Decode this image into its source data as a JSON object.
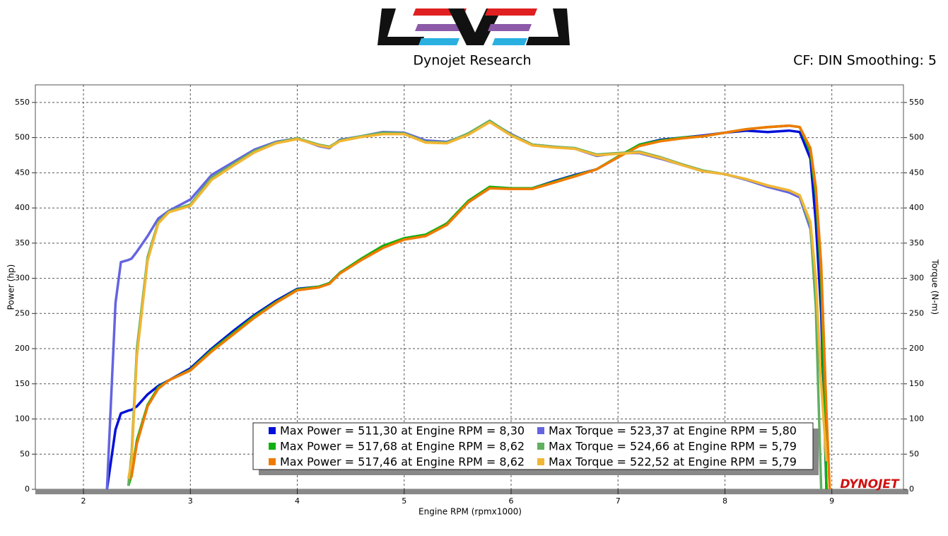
{
  "chart_data": {
    "type": "line",
    "title": "Dynojet Research",
    "subtitle": "CF: DIN Smoothing: 5",
    "brand": "DYNOJET",
    "x_label": "Engine RPM (rpmx1000)",
    "y_label": "Power (hp)",
    "y2_label": "Torque (N-m)",
    "grid": true,
    "xlim": [
      1.55,
      9.67
    ],
    "xticks": [
      2,
      3,
      4,
      5,
      6,
      7,
      8,
      9
    ],
    "ylim": [
      0,
      575
    ],
    "yticks": [
      0,
      50,
      100,
      150,
      200,
      250,
      300,
      350,
      400,
      450,
      500,
      550
    ],
    "y2lim": [
      0,
      575
    ],
    "y2ticks": [
      0,
      50,
      100,
      150,
      200,
      250,
      300,
      350,
      400,
      450,
      500,
      550
    ],
    "x": [
      2.22,
      2.3,
      2.35,
      2.42,
      2.45,
      2.5,
      2.6,
      2.7,
      2.8,
      3.0,
      3.2,
      3.4,
      3.6,
      3.8,
      4.0,
      4.2,
      4.3,
      4.4,
      4.6,
      4.8,
      5.0,
      5.2,
      5.4,
      5.6,
      5.8,
      6.0,
      6.2,
      6.4,
      6.6,
      6.8,
      7.0,
      7.2,
      7.4,
      7.6,
      7.8,
      8.0,
      8.2,
      8.4,
      8.6,
      8.7,
      8.8,
      8.85,
      8.9,
      8.95,
      8.98
    ],
    "series": [
      {
        "name": "Max Power = 511,30 at Engine RPM = 8,30",
        "color": "#0010d8",
        "values": [
          0,
          85,
          108,
          112,
          113,
          118,
          135,
          147,
          155,
          172,
          200,
          225,
          248,
          268,
          285,
          288,
          293,
          308,
          327,
          344,
          356,
          361,
          378,
          408,
          428,
          428,
          428,
          438,
          447,
          455,
          472,
          490,
          497,
          500,
          503,
          507,
          510,
          508,
          510,
          508,
          470,
          380,
          250,
          0,
          null
        ]
      },
      {
        "name": "Max Power = 517,68 at Engine RPM = 8,62",
        "color": "#10b010",
        "values": [
          null,
          null,
          null,
          5,
          20,
          70,
          120,
          145,
          155,
          170,
          198,
          222,
          246,
          266,
          284,
          288,
          293,
          308,
          328,
          346,
          357,
          362,
          378,
          410,
          430,
          428,
          428,
          437,
          446,
          455,
          473,
          490,
          496,
          500,
          502,
          507,
          512,
          515,
          517,
          515,
          480,
          420,
          300,
          0,
          null
        ]
      },
      {
        "name": "Max Power = 517,46 at Engine RPM = 8,62",
        "color": "#f07a00",
        "values": [
          null,
          null,
          null,
          12,
          18,
          65,
          118,
          143,
          155,
          169,
          196,
          220,
          244,
          265,
          283,
          287,
          292,
          307,
          326,
          343,
          355,
          360,
          376,
          408,
          428,
          427,
          427,
          436,
          445,
          455,
          472,
          488,
          495,
          499,
          502,
          507,
          512,
          515,
          517,
          515,
          485,
          430,
          320,
          110,
          0
        ]
      },
      {
        "name": "Max Torque = 523,37 at Engine RPM = 5,80",
        "color": "#6464e0",
        "axis": "y2",
        "values": [
          0,
          265,
          323,
          326,
          328,
          338,
          360,
          385,
          396,
          412,
          447,
          465,
          483,
          494,
          499,
          488,
          485,
          497,
          502,
          508,
          507,
          496,
          494,
          505,
          523,
          505,
          490,
          487,
          484,
          474,
          478,
          478,
          470,
          461,
          452,
          448,
          440,
          430,
          422,
          415,
          370,
          280,
          150,
          null,
          null
        ]
      },
      {
        "name": "Max Torque = 524,66 at Engine RPM = 5,79",
        "color": "#60b060",
        "axis": "y2",
        "values": [
          null,
          null,
          null,
          5,
          50,
          200,
          330,
          380,
          395,
          405,
          443,
          462,
          481,
          493,
          499,
          490,
          487,
          496,
          502,
          507,
          506,
          494,
          493,
          506,
          524,
          504,
          490,
          487,
          485,
          476,
          478,
          480,
          472,
          462,
          453,
          448,
          441,
          432,
          425,
          418,
          375,
          260,
          0,
          null,
          null
        ]
      },
      {
        "name": "Max Torque = 522,52 at Engine RPM = 5,79",
        "color": "#f2b634",
        "axis": "y2",
        "values": [
          null,
          null,
          null,
          15,
          40,
          190,
          325,
          378,
          394,
          403,
          440,
          460,
          479,
          492,
          498,
          489,
          486,
          495,
          501,
          505,
          505,
          493,
          492,
          504,
          522,
          503,
          489,
          486,
          484,
          475,
          477,
          479,
          471,
          461,
          452,
          448,
          441,
          432,
          425,
          418,
          380,
          300,
          150,
          40,
          null
        ]
      }
    ]
  }
}
